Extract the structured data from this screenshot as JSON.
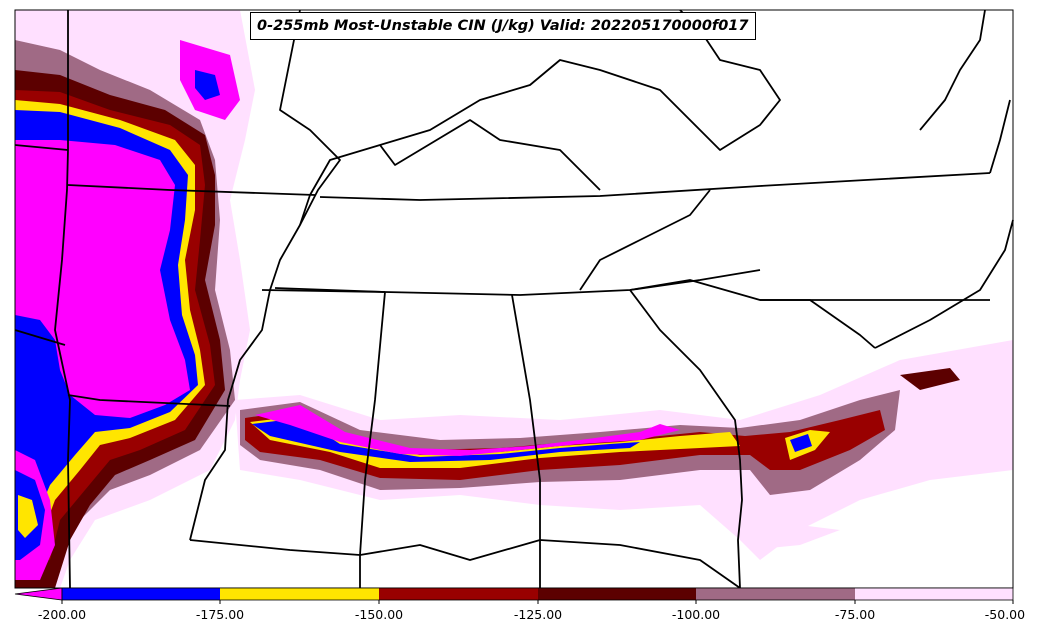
{
  "title": "0-255mb Most-Unstable CIN (J/kg) Valid: 202205170000f017",
  "colorbar": {
    "ticks": [
      "-200.00",
      "-175.00",
      "-150.00",
      "-125.00",
      "-100.00",
      "-75.00",
      "-50.00"
    ],
    "colors": {
      "below_min": "#ff00ff",
      "-200_-175": "#0000ff",
      "-175_-150": "#ffe500",
      "-150_-125": "#990000",
      "-125_-100": "#5c0000",
      "-100_-75": "#a06a85",
      "-75_-50": "#ffe0ff"
    }
  }
}
